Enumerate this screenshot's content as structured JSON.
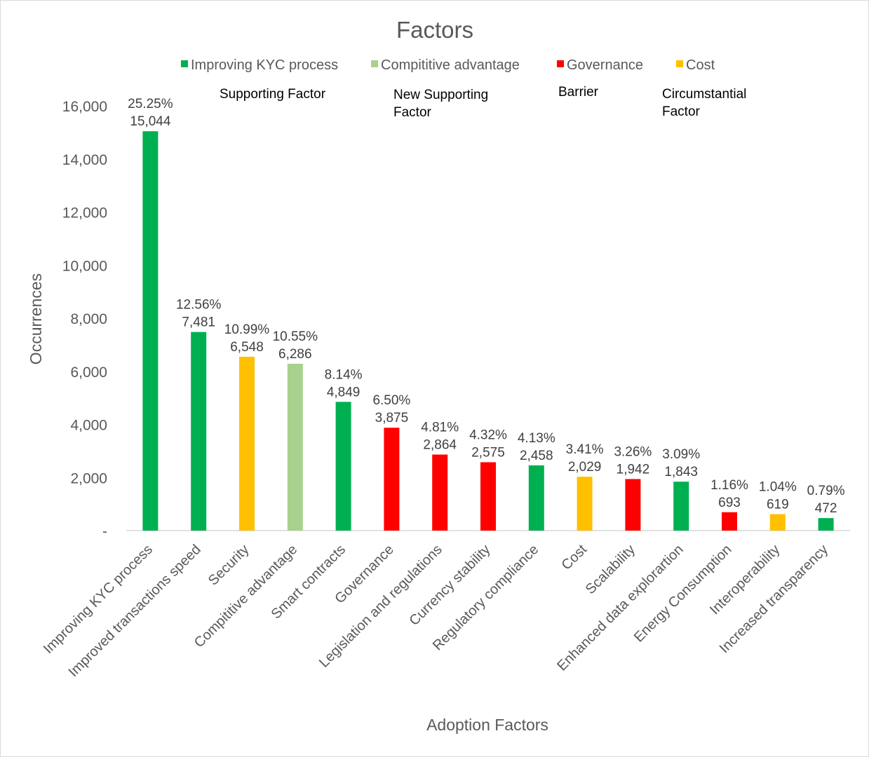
{
  "chart_data": {
    "type": "bar",
    "title": "Factors",
    "xlabel": "Adoption Factors",
    "ylabel": "Occurrences",
    "ylim": [
      0,
      16000
    ],
    "yticks": [
      {
        "value": 0,
        "label": "-"
      },
      {
        "value": 2000,
        "label": "2,000"
      },
      {
        "value": 4000,
        "label": "4,000"
      },
      {
        "value": 6000,
        "label": "6,000"
      },
      {
        "value": 8000,
        "label": "8,000"
      },
      {
        "value": 10000,
        "label": "10,000"
      },
      {
        "value": 12000,
        "label": "12,000"
      },
      {
        "value": 14000,
        "label": "14,000"
      },
      {
        "value": 16000,
        "label": "16,000"
      }
    ],
    "legend": [
      {
        "name": "Improving KYC process",
        "color": "#00b050",
        "note": [
          "Supporting Factor"
        ]
      },
      {
        "name": "Compititive advantage",
        "color": "#a9d18e",
        "note": [
          "New Supporting",
          "Factor"
        ]
      },
      {
        "name": "Governance",
        "color": "#ff0000",
        "note": [
          "Barrier"
        ]
      },
      {
        "name": "Cost",
        "color": "#ffc000",
        "note": [
          "Circumstantial",
          "Factor"
        ]
      }
    ],
    "categories": [
      "Improving KYC process",
      "Improved transactions speed",
      "Security",
      "Compititive advantage",
      "Smart contracts",
      "Governance",
      "Legislation and regulations",
      "Currency stability",
      "Regulatory compliance",
      "Cost",
      "Scalability",
      "Enhanced data explorartion",
      "Energy Consumption",
      "Interoperability",
      "Increased transparency"
    ],
    "values": [
      15044,
      7481,
      6548,
      6286,
      4849,
      3875,
      2864,
      2575,
      2458,
      2029,
      1942,
      1843,
      693,
      619,
      472
    ],
    "value_labels": [
      "15,044",
      "7,481",
      "6,548",
      "6,286",
      "4,849",
      "3,875",
      "2,864",
      "2,575",
      "2,458",
      "2,029",
      "1,942",
      "1,843",
      "693",
      "619",
      "472"
    ],
    "percent_labels": [
      "25.25%",
      "12.56%",
      "10.99%",
      "10.55%",
      "8.14%",
      "6.50%",
      "4.81%",
      "4.32%",
      "4.13%",
      "3.41%",
      "3.26%",
      "3.09%",
      "1.16%",
      "1.04%",
      "0.79%"
    ],
    "colors": [
      "#00b050",
      "#00b050",
      "#ffc000",
      "#a9d18e",
      "#00b050",
      "#ff0000",
      "#ff0000",
      "#ff0000",
      "#00b050",
      "#ffc000",
      "#ff0000",
      "#00b050",
      "#ff0000",
      "#ffc000",
      "#00b050"
    ],
    "grid": false,
    "legend_position": "top"
  }
}
